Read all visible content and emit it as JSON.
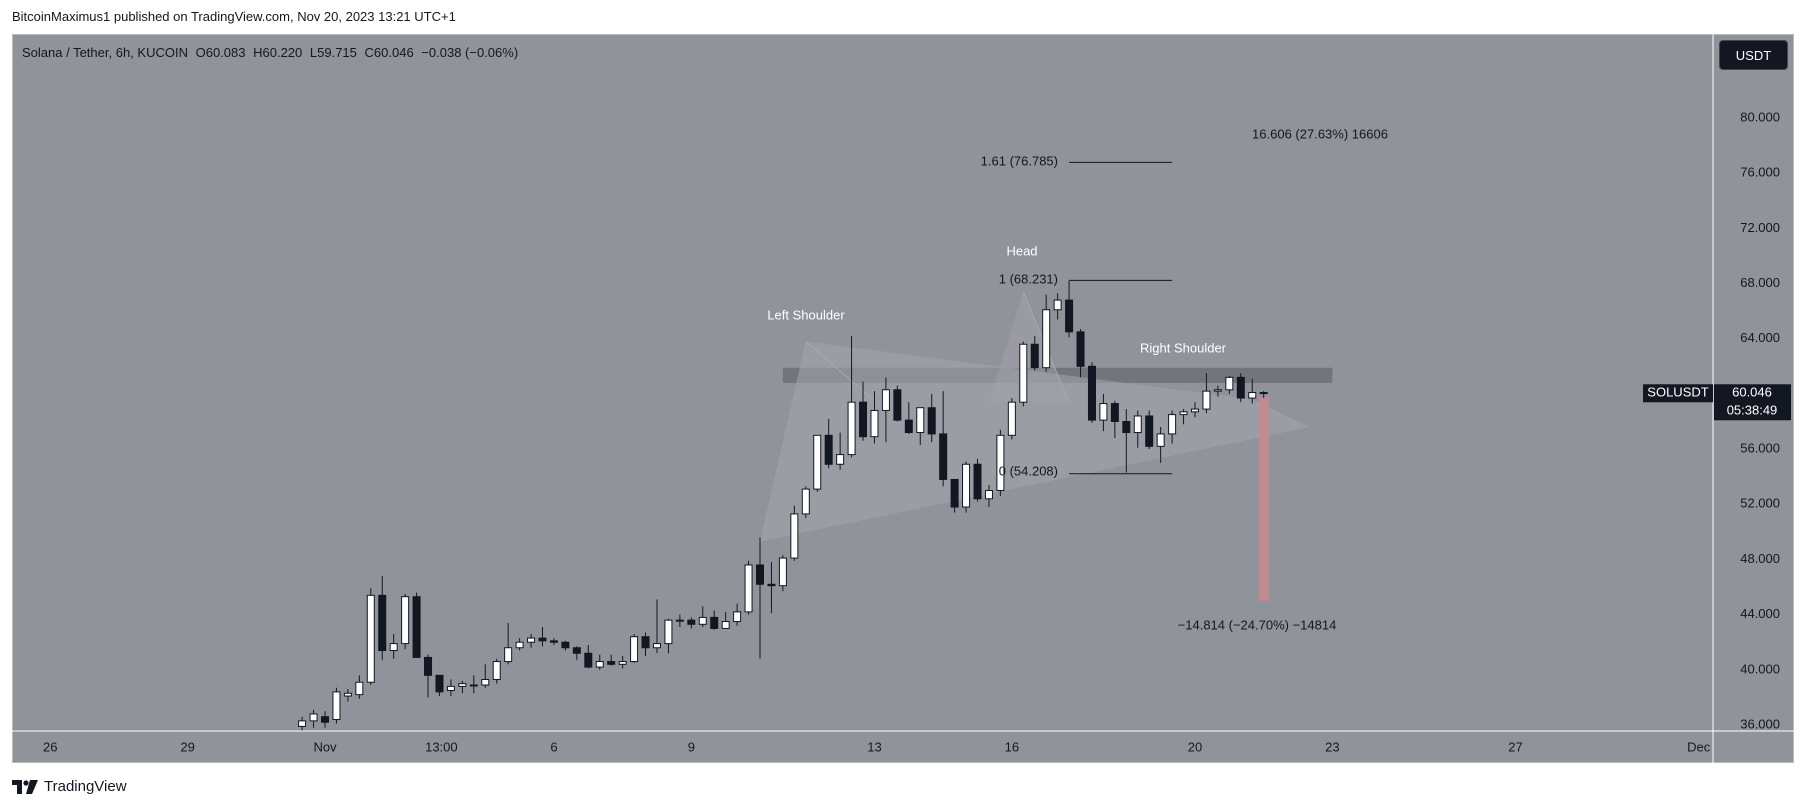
{
  "header": {
    "text": "BitcoinMaximus1 published on TradingView.com, Nov 20, 2023 13:21 UTC+1"
  },
  "legend": {
    "symbol": "Solana / Tether, 6h, KUCOIN",
    "o_label": "O",
    "o": "60.083",
    "h_label": "H",
    "h": "60.220",
    "l_label": "L",
    "l": "59.715",
    "c_label": "C",
    "c": "60.046",
    "change": "−0.038 (−0.06%)"
  },
  "currency_button": "USDT",
  "footer": {
    "brand": "TradingView"
  },
  "colors": {
    "background": "#91939b",
    "bull_body": "#ffffff",
    "bear_body": "#131722",
    "wick": "#131722",
    "target_box": "#c78a90",
    "resistance_band": "#6e7077"
  },
  "chart_data": {
    "type": "candlestick",
    "symbol": "SOLUSDT",
    "last_price": "60.046",
    "countdown": "05:38:49",
    "ylim": [
      35.5,
      82.5
    ],
    "y_ticks": [
      "36.000",
      "40.000",
      "44.000",
      "48.000",
      "52.000",
      "56.000",
      "60.000",
      "64.000",
      "68.000",
      "72.000",
      "76.000",
      "80.000"
    ],
    "y_tick_values": [
      36,
      40,
      44,
      48,
      52,
      56,
      60,
      64,
      68,
      72,
      76,
      80
    ],
    "x_ticks": [
      {
        "label": "26",
        "date": "2023-10-26"
      },
      {
        "label": "29",
        "date": "2023-10-29"
      },
      {
        "label": "Nov",
        "date": "2023-11-01"
      },
      {
        "label": "13:00",
        "date": "2023-11-03T13:00"
      },
      {
        "label": "6",
        "date": "2023-11-06"
      },
      {
        "label": "9",
        "date": "2023-11-09"
      },
      {
        "label": "13",
        "date": "2023-11-13"
      },
      {
        "label": "16",
        "date": "2023-11-16"
      },
      {
        "label": "20",
        "date": "2023-11-20"
      },
      {
        "label": "23",
        "date": "2023-11-23"
      },
      {
        "label": "27",
        "date": "2023-11-27"
      },
      {
        "label": "Dec",
        "date": "2023-12-01"
      }
    ],
    "candles": [
      {
        "o": 35.9,
        "h": 36.6,
        "l": 35.6,
        "c": 36.3
      },
      {
        "o": 36.3,
        "h": 37.1,
        "l": 35.8,
        "c": 36.8
      },
      {
        "o": 36.6,
        "h": 37.0,
        "l": 35.8,
        "c": 36.2
      },
      {
        "o": 36.4,
        "h": 38.7,
        "l": 36.1,
        "c": 38.4
      },
      {
        "o": 38.1,
        "h": 38.6,
        "l": 37.7,
        "c": 38.3
      },
      {
        "o": 38.2,
        "h": 39.6,
        "l": 37.9,
        "c": 39.1
      },
      {
        "o": 39.1,
        "h": 45.9,
        "l": 38.9,
        "c": 45.4
      },
      {
        "o": 45.4,
        "h": 46.8,
        "l": 40.7,
        "c": 41.4
      },
      {
        "o": 41.4,
        "h": 42.6,
        "l": 40.8,
        "c": 41.9
      },
      {
        "o": 41.9,
        "h": 45.5,
        "l": 41.5,
        "c": 45.3
      },
      {
        "o": 45.3,
        "h": 45.6,
        "l": 40.9,
        "c": 40.9
      },
      {
        "o": 40.9,
        "h": 41.1,
        "l": 38.0,
        "c": 39.6
      },
      {
        "o": 39.6,
        "h": 39.6,
        "l": 38.1,
        "c": 38.4
      },
      {
        "o": 38.5,
        "h": 39.3,
        "l": 38.1,
        "c": 38.8
      },
      {
        "o": 38.8,
        "h": 39.2,
        "l": 38.3,
        "c": 39.0
      },
      {
        "o": 38.9,
        "h": 39.6,
        "l": 38.3,
        "c": 38.9
      },
      {
        "o": 38.9,
        "h": 40.4,
        "l": 38.7,
        "c": 39.3
      },
      {
        "o": 39.3,
        "h": 40.8,
        "l": 39.0,
        "c": 40.6
      },
      {
        "o": 40.6,
        "h": 43.4,
        "l": 40.4,
        "c": 41.6
      },
      {
        "o": 41.6,
        "h": 42.3,
        "l": 41.4,
        "c": 42.0
      },
      {
        "o": 42.0,
        "h": 42.6,
        "l": 41.6,
        "c": 42.3
      },
      {
        "o": 42.3,
        "h": 43.1,
        "l": 41.7,
        "c": 42.1
      },
      {
        "o": 42.1,
        "h": 42.3,
        "l": 41.8,
        "c": 42.0
      },
      {
        "o": 42.0,
        "h": 42.1,
        "l": 41.4,
        "c": 41.6
      },
      {
        "o": 41.6,
        "h": 41.7,
        "l": 40.7,
        "c": 41.2
      },
      {
        "o": 41.2,
        "h": 41.8,
        "l": 40.1,
        "c": 40.2
      },
      {
        "o": 40.2,
        "h": 41.1,
        "l": 40.0,
        "c": 40.6
      },
      {
        "o": 40.6,
        "h": 41.1,
        "l": 40.3,
        "c": 40.4
      },
      {
        "o": 40.4,
        "h": 41.0,
        "l": 40.1,
        "c": 40.6
      },
      {
        "o": 40.6,
        "h": 42.6,
        "l": 40.5,
        "c": 42.4
      },
      {
        "o": 42.4,
        "h": 42.7,
        "l": 41.0,
        "c": 41.6
      },
      {
        "o": 41.6,
        "h": 45.1,
        "l": 41.2,
        "c": 41.9
      },
      {
        "o": 41.9,
        "h": 43.7,
        "l": 41.2,
        "c": 43.6
      },
      {
        "o": 43.6,
        "h": 44.0,
        "l": 43.1,
        "c": 43.6
      },
      {
        "o": 43.6,
        "h": 43.8,
        "l": 43.0,
        "c": 43.3
      },
      {
        "o": 43.3,
        "h": 44.6,
        "l": 43.1,
        "c": 43.8
      },
      {
        "o": 43.8,
        "h": 44.3,
        "l": 42.9,
        "c": 43.0
      },
      {
        "o": 43.0,
        "h": 44.2,
        "l": 43.0,
        "c": 43.5
      },
      {
        "o": 43.5,
        "h": 44.8,
        "l": 43.2,
        "c": 44.2
      },
      {
        "o": 44.2,
        "h": 47.9,
        "l": 44.0,
        "c": 47.6
      },
      {
        "o": 47.6,
        "h": 49.6,
        "l": 40.8,
        "c": 46.2
      },
      {
        "o": 46.2,
        "h": 47.8,
        "l": 44.1,
        "c": 46.1
      },
      {
        "o": 46.1,
        "h": 48.3,
        "l": 45.7,
        "c": 48.1
      },
      {
        "o": 48.1,
        "h": 51.9,
        "l": 47.9,
        "c": 51.3
      },
      {
        "o": 51.3,
        "h": 53.3,
        "l": 51.0,
        "c": 53.1
      },
      {
        "o": 53.1,
        "h": 57.0,
        "l": 52.9,
        "c": 57.0
      },
      {
        "o": 57.0,
        "h": 58.2,
        "l": 54.6,
        "c": 54.9
      },
      {
        "o": 54.9,
        "h": 57.2,
        "l": 54.5,
        "c": 55.6
      },
      {
        "o": 55.6,
        "h": 64.2,
        "l": 55.4,
        "c": 59.4
      },
      {
        "o": 59.4,
        "h": 60.9,
        "l": 56.6,
        "c": 56.9
      },
      {
        "o": 56.9,
        "h": 60.2,
        "l": 56.4,
        "c": 58.8
      },
      {
        "o": 58.8,
        "h": 61.2,
        "l": 56.5,
        "c": 60.3
      },
      {
        "o": 60.3,
        "h": 60.6,
        "l": 58.0,
        "c": 58.1
      },
      {
        "o": 58.1,
        "h": 59.4,
        "l": 57.1,
        "c": 57.2
      },
      {
        "o": 57.2,
        "h": 59.0,
        "l": 56.3,
        "c": 59.0
      },
      {
        "o": 59.0,
        "h": 60.0,
        "l": 56.5,
        "c": 57.1
      },
      {
        "o": 57.1,
        "h": 60.2,
        "l": 53.3,
        "c": 53.8
      },
      {
        "o": 53.8,
        "h": 53.8,
        "l": 51.4,
        "c": 51.8
      },
      {
        "o": 51.8,
        "h": 55.1,
        "l": 51.4,
        "c": 54.9
      },
      {
        "o": 54.9,
        "h": 55.3,
        "l": 52.2,
        "c": 52.4
      },
      {
        "o": 52.4,
        "h": 53.4,
        "l": 51.8,
        "c": 53.0
      },
      {
        "o": 53.0,
        "h": 57.4,
        "l": 52.6,
        "c": 57.0
      },
      {
        "o": 57.0,
        "h": 59.7,
        "l": 56.7,
        "c": 59.4
      },
      {
        "o": 59.4,
        "h": 63.8,
        "l": 59.1,
        "c": 63.6
      },
      {
        "o": 63.6,
        "h": 64.2,
        "l": 61.7,
        "c": 61.9
      },
      {
        "o": 61.9,
        "h": 67.2,
        "l": 61.6,
        "c": 66.1
      },
      {
        "o": 66.1,
        "h": 67.3,
        "l": 65.4,
        "c": 66.8
      },
      {
        "o": 66.8,
        "h": 68.2,
        "l": 64.1,
        "c": 64.5
      },
      {
        "o": 64.5,
        "h": 64.7,
        "l": 61.2,
        "c": 62.0
      },
      {
        "o": 62.0,
        "h": 62.3,
        "l": 57.9,
        "c": 58.1
      },
      {
        "o": 58.1,
        "h": 60.0,
        "l": 57.3,
        "c": 59.3
      },
      {
        "o": 59.3,
        "h": 59.5,
        "l": 56.8,
        "c": 58.0
      },
      {
        "o": 58.0,
        "h": 58.9,
        "l": 54.3,
        "c": 57.2
      },
      {
        "o": 57.2,
        "h": 58.8,
        "l": 56.1,
        "c": 58.4
      },
      {
        "o": 58.4,
        "h": 58.8,
        "l": 56.0,
        "c": 56.2
      },
      {
        "o": 56.2,
        "h": 57.6,
        "l": 55.0,
        "c": 57.1
      },
      {
        "o": 57.1,
        "h": 58.8,
        "l": 56.4,
        "c": 58.5
      },
      {
        "o": 58.5,
        "h": 58.9,
        "l": 57.8,
        "c": 58.7
      },
      {
        "o": 58.7,
        "h": 59.4,
        "l": 58.3,
        "c": 58.9
      },
      {
        "o": 58.9,
        "h": 61.5,
        "l": 58.6,
        "c": 60.2
      },
      {
        "o": 60.2,
        "h": 60.6,
        "l": 59.8,
        "c": 60.3
      },
      {
        "o": 60.3,
        "h": 61.3,
        "l": 60.0,
        "c": 61.2
      },
      {
        "o": 61.2,
        "h": 61.5,
        "l": 59.4,
        "c": 59.7
      },
      {
        "o": 59.7,
        "h": 61.1,
        "l": 59.3,
        "c": 60.1
      },
      {
        "o": 60.1,
        "h": 60.2,
        "l": 59.7,
        "c": 60.046
      }
    ],
    "candle_start_date": "2023-10-31T12:00",
    "candle_interval_hours": 6,
    "annotations": {
      "left_shoulder": "Left Shoulder",
      "head": "Head",
      "right_shoulder": "Right Shoulder",
      "fib_161": "1.61 (76.785)",
      "fib_1": "1 (68.231)",
      "fib_0": "0 (54.208)",
      "target_up": "16.606 (27.63%) 16606",
      "target_down": "−14.814 (−24.70%) −14814"
    },
    "fib_levels": [
      76.785,
      68.231,
      54.208
    ],
    "fib_start_date": "2023-11-17T06:00",
    "fib_end_date": "2023-11-19T12:00",
    "resistance_band": [
      60.8,
      61.9
    ],
    "resistance_start_date": "2023-11-11T00:00",
    "resistance_end_date": "2023-11-23T00:00",
    "target_box_range": [
      45.0,
      59.8
    ],
    "target_box_date": "2023-11-21T12:00",
    "triangle": [
      {
        "date": "2023-11-10T12:00",
        "value": 49.3
      },
      {
        "date": "2023-11-22T12:00",
        "value": 57.6
      },
      {
        "date": "2023-11-21T06:00",
        "value": 59.6
      },
      {
        "date": "2023-11-11T12:00",
        "value": 63.8
      }
    ],
    "shoulder_head_lines": [
      {
        "from": {
          "date": "2023-11-11T12:00",
          "value": 63.8
        },
        "to": {
          "date": "2023-11-13T00:00",
          "value": 59.5
        }
      },
      {
        "from": {
          "date": "2023-11-16T06:00",
          "value": 67.4
        },
        "to": {
          "date": "2023-11-17T06:00",
          "value": 59.4
        }
      }
    ]
  }
}
